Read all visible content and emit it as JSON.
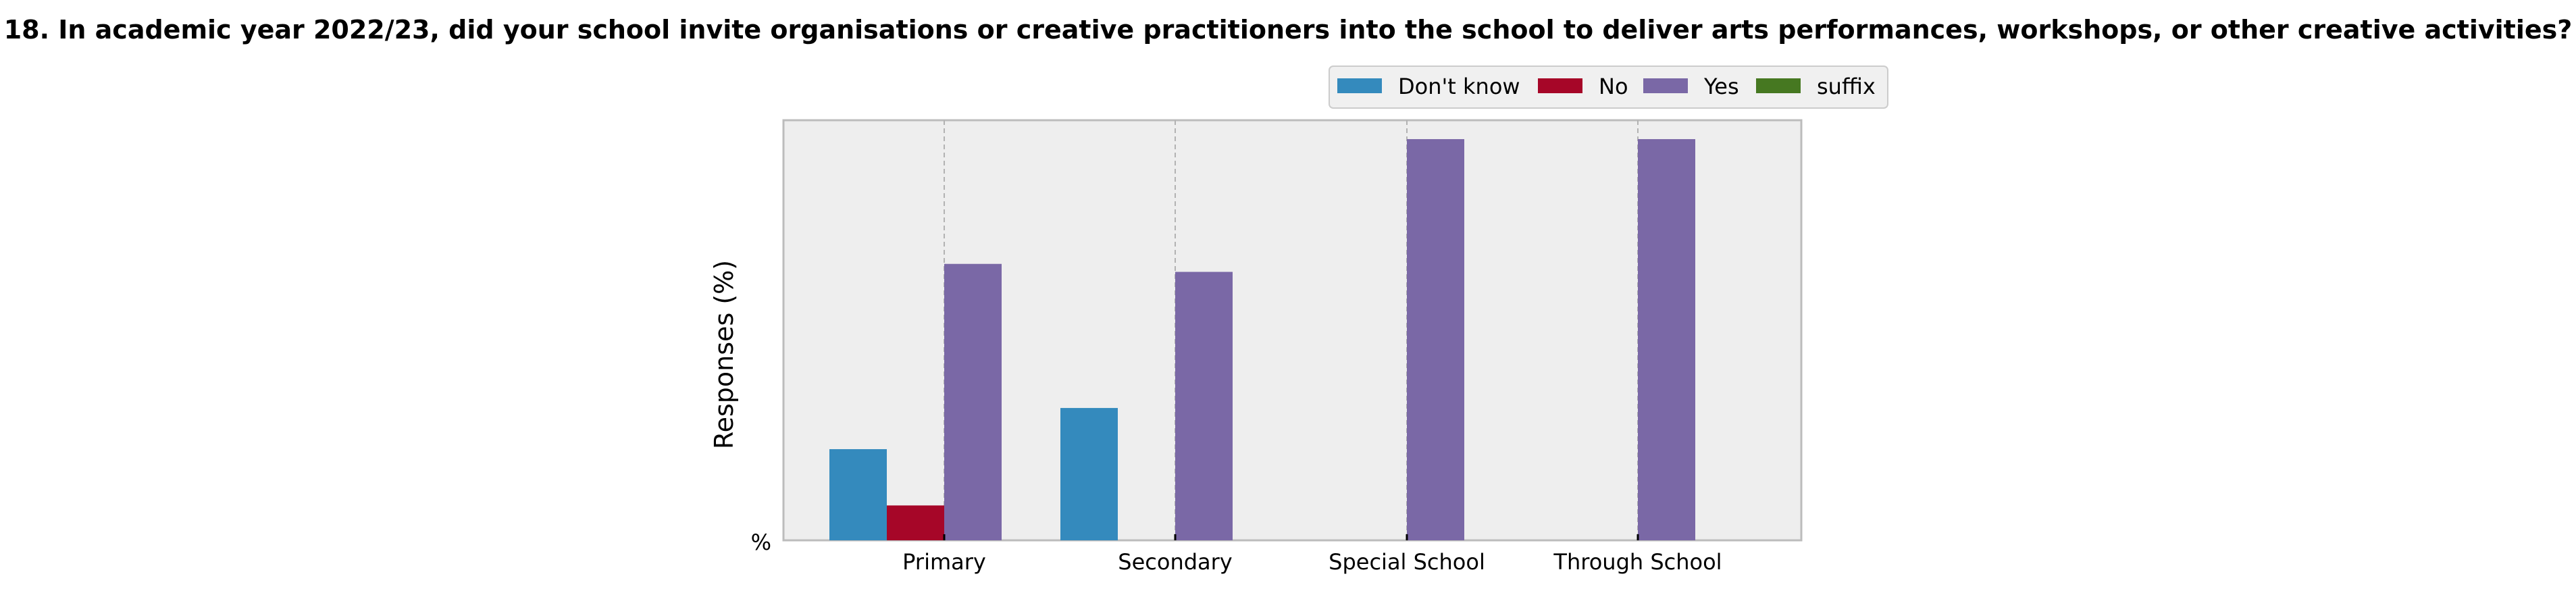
{
  "chart_data": {
    "type": "bar",
    "title": "18. In academic year 2022/23, did your school invite organisations or creative practitioners into the school to deliver arts performances, workshops, or other creative activities?",
    "xlabel": "",
    "ylabel": "Responses (%)",
    "y_tick_label": "%",
    "ylim": [
      0,
      100
    ],
    "grid": true,
    "legend_position": "top-right",
    "categories": [
      "Primary",
      "Secondary",
      "Special School",
      "Through School"
    ],
    "series": [
      {
        "name": "Don't know",
        "color": "#348ABD",
        "values": [
          21.7,
          31.5,
          0,
          0
        ]
      },
      {
        "name": "No",
        "color": "#A60628",
        "values": [
          8.3,
          0,
          0,
          0
        ]
      },
      {
        "name": "Yes",
        "color": "#7A68A6",
        "values": [
          65.8,
          63.9,
          95.5,
          95.5
        ]
      },
      {
        "name": "suffix",
        "color": "#467821",
        "values": [
          0,
          0,
          0,
          0
        ]
      }
    ]
  }
}
